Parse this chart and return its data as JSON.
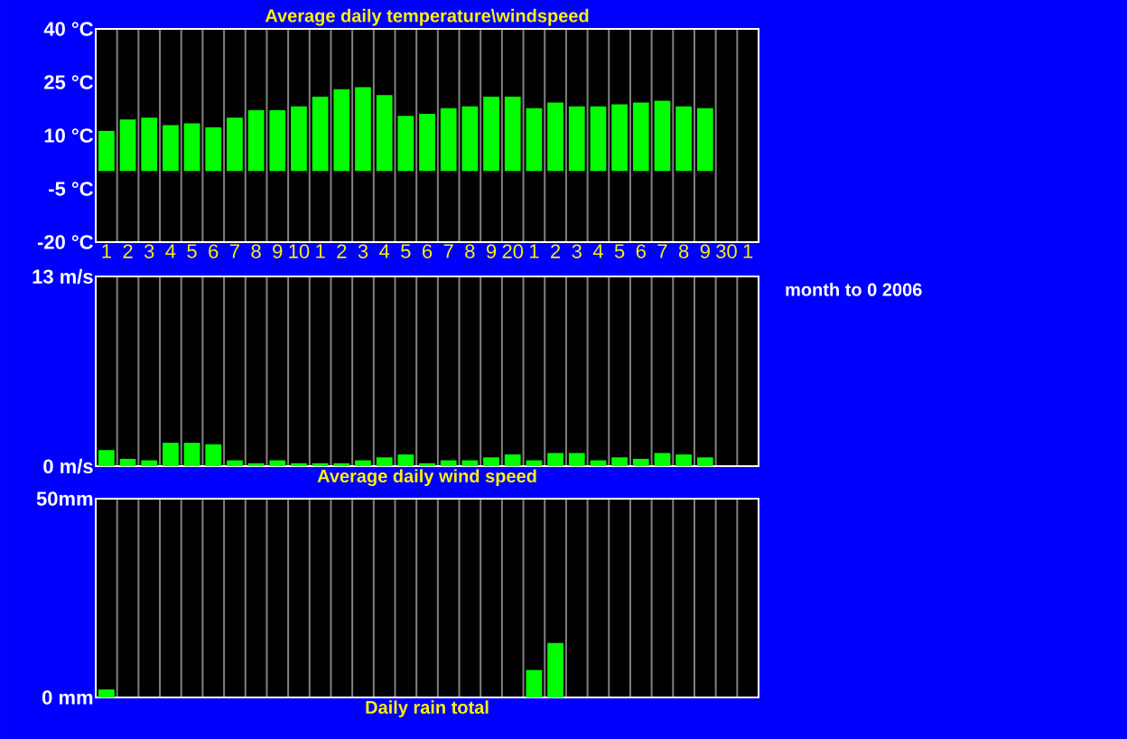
{
  "chart_data": [
    {
      "type": "bar",
      "title": "Average daily temperature\\windspeed",
      "categories": [
        "1",
        "2",
        "3",
        "4",
        "5",
        "6",
        "7",
        "8",
        "9",
        "10",
        "1",
        "2",
        "3",
        "4",
        "5",
        "6",
        "7",
        "8",
        "9",
        "20",
        "1",
        "2",
        "3",
        "4",
        "5",
        "6",
        "7",
        "8",
        "9",
        "30",
        "1"
      ],
      "values": [
        11.3,
        14.5,
        15,
        12.9,
        13.4,
        12.3,
        15,
        17.1,
        17.1,
        18.2,
        20.9,
        23,
        23.6,
        21.4,
        15.5,
        16.1,
        17.7,
        18.2,
        20.9,
        20.9,
        17.7,
        19.3,
        18.2,
        18.2,
        18.8,
        19.3,
        19.8,
        18.2,
        17.7,
        null,
        null
      ],
      "color": "#00ff00",
      "ylim": [
        -20,
        40
      ],
      "yticks": [
        {
          "value": -20,
          "label": "-20 °C"
        },
        {
          "value": -5,
          "label": "-5 °C"
        },
        {
          "value": 10,
          "label": "10 °C"
        },
        {
          "value": 25,
          "label": "25 °C"
        },
        {
          "value": 40,
          "label": "40 °C"
        }
      ],
      "grid": "x"
    },
    {
      "type": "bar",
      "title": "Average daily wind speed",
      "categories": [
        "1",
        "2",
        "3",
        "4",
        "5",
        "6",
        "7",
        "8",
        "9",
        "10",
        "1",
        "2",
        "3",
        "4",
        "5",
        "6",
        "7",
        "8",
        "9",
        "20",
        "1",
        "2",
        "3",
        "4",
        "5",
        "6",
        "7",
        "8",
        "9",
        "30",
        "1"
      ],
      "values": [
        1.1,
        0.5,
        0.4,
        1.6,
        1.6,
        1.5,
        0.4,
        0.2,
        0.4,
        0.2,
        0.2,
        0.2,
        0.4,
        0.6,
        0.8,
        0.2,
        0.4,
        0.4,
        0.6,
        0.8,
        0.4,
        0.9,
        0.9,
        0.4,
        0.6,
        0.5,
        0.9,
        0.8,
        0.6,
        null,
        null
      ],
      "color": "#00ff00",
      "ylim": [
        0,
        13
      ],
      "yticks": [
        {
          "value": 0,
          "label": "0 m/s"
        },
        {
          "value": 13,
          "label": "13 m/s"
        }
      ],
      "grid": "x",
      "tick_labels": "y",
      "annotations": [
        "month to 0 2006"
      ]
    },
    {
      "type": "bar",
      "title": "Daily rain total",
      "categories": [
        "1",
        "2",
        "3",
        "4",
        "5",
        "6",
        "7",
        "8",
        "9",
        "10",
        "1",
        "2",
        "3",
        "4",
        "5",
        "6",
        "7",
        "8",
        "9",
        "20",
        "1",
        "2",
        "3",
        "4",
        "5",
        "6",
        "7",
        "8",
        "9",
        "30",
        "1"
      ],
      "values": [
        2,
        0,
        0,
        0,
        0,
        0,
        0,
        0,
        0,
        0,
        0,
        0,
        0,
        0,
        0,
        0,
        0,
        0,
        0,
        0,
        6.9,
        13.7,
        0,
        0,
        0,
        0,
        0,
        0,
        0,
        null,
        null
      ],
      "color": "#00ff00",
      "ylim": [
        0,
        50
      ],
      "yticks": [
        {
          "value": 0,
          "label": "0 mm"
        },
        {
          "value": 50,
          "label": "50mm"
        }
      ],
      "grid": "x",
      "tick_labels": "y"
    }
  ]
}
